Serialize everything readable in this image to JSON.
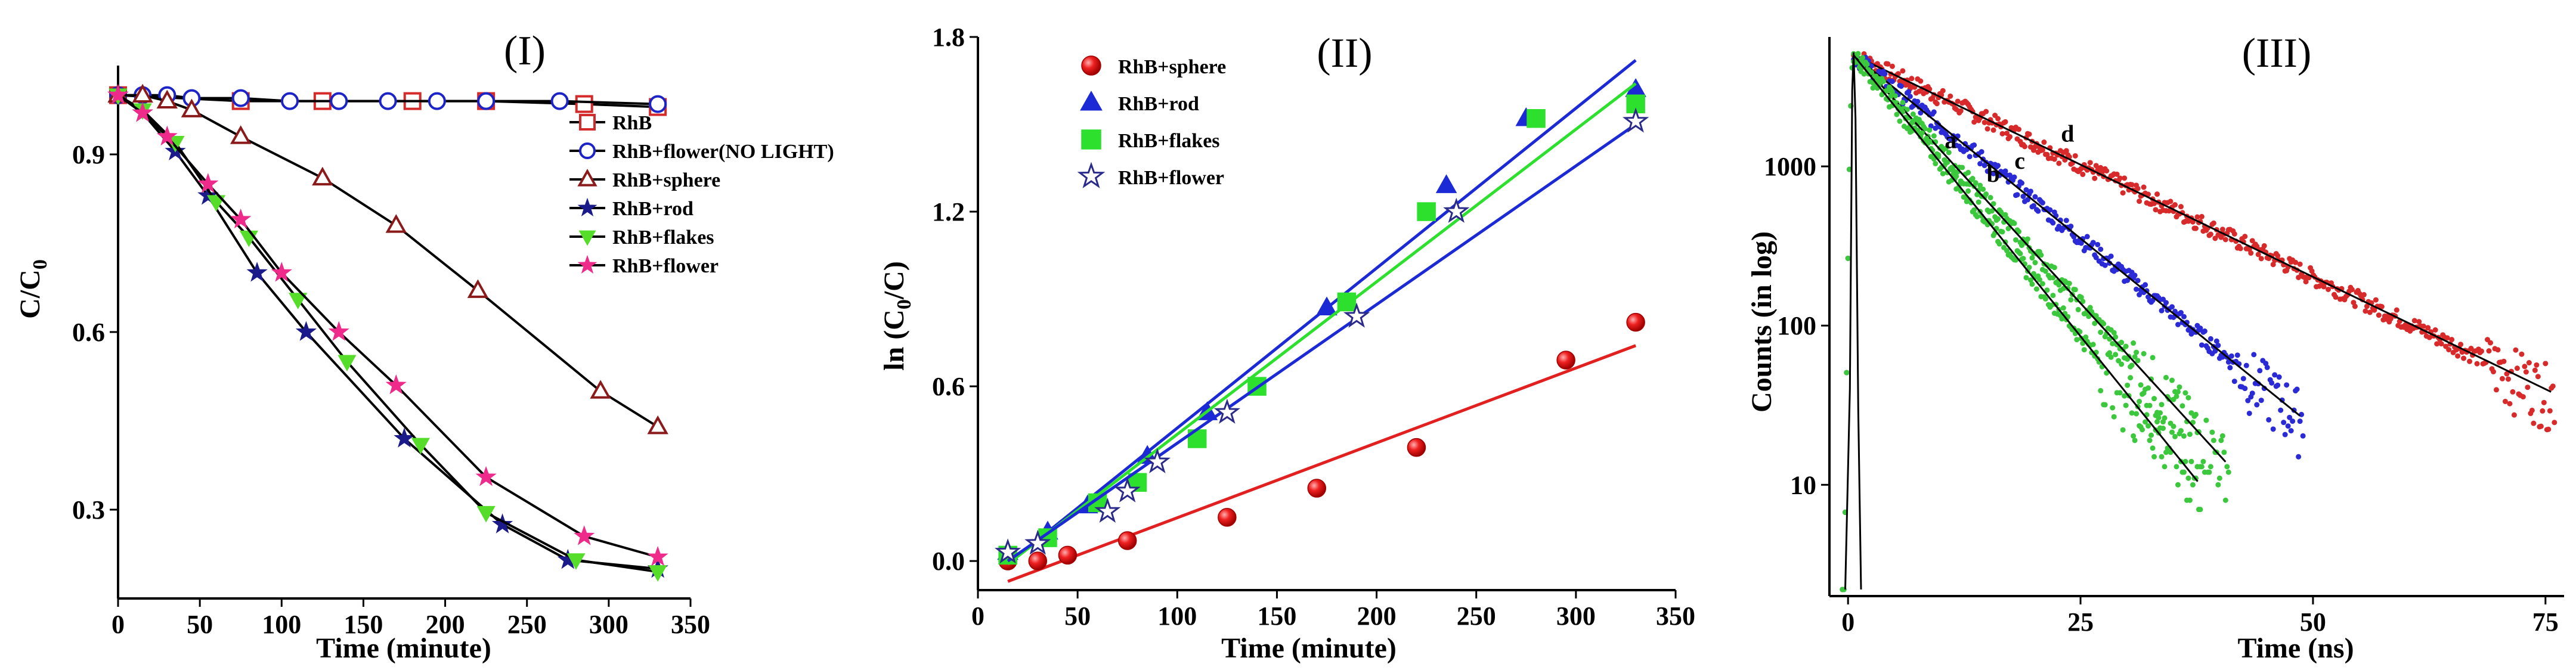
{
  "chart_data": [
    {
      "type": "line",
      "panel_label": "(I)",
      "xlabel": "Time (minute)",
      "ylabel": "C/C",
      "ylabel_sub": "0",
      "xlim": [
        0,
        350
      ],
      "ylim": [
        0.15,
        1.05
      ],
      "xticks": [
        0,
        50,
        100,
        150,
        200,
        250,
        300,
        350
      ],
      "yticks": [
        0.3,
        0.6,
        0.9
      ],
      "grid": false,
      "legend": "top-right",
      "series": [
        {
          "name": "RhB",
          "color": "#d42a2a",
          "marker": "square",
          "x": [
            0,
            75,
            125,
            180,
            225,
            285,
            330
          ],
          "y": [
            1.0,
            0.99,
            0.99,
            0.99,
            0.99,
            0.985,
            0.98
          ]
        },
        {
          "name": "RhB+flower(NO LIGHT)",
          "color": "#1c24c8",
          "marker": "circle",
          "x": [
            0,
            15,
            30,
            45,
            75,
            105,
            135,
            165,
            195,
            225,
            270,
            330
          ],
          "y": [
            1.0,
            1.0,
            1.0,
            0.995,
            0.995,
            0.99,
            0.99,
            0.99,
            0.99,
            0.99,
            0.99,
            0.985
          ]
        },
        {
          "name": "RhB+sphere",
          "color": "#8b1a1a",
          "marker": "triangle",
          "x": [
            0,
            15,
            30,
            45,
            75,
            125,
            170,
            220,
            295,
            330
          ],
          "y": [
            1.0,
            1.0,
            0.99,
            0.975,
            0.93,
            0.86,
            0.78,
            0.67,
            0.5,
            0.44
          ]
        },
        {
          "name": "RhB+rod",
          "color": "#1a1a8a",
          "marker": "star",
          "x": [
            0,
            15,
            35,
            55,
            85,
            115,
            175,
            235,
            275,
            330
          ],
          "y": [
            1.0,
            0.97,
            0.905,
            0.83,
            0.7,
            0.6,
            0.42,
            0.275,
            0.215,
            0.2
          ]
        },
        {
          "name": "RhB+flakes",
          "color": "#55dd2a",
          "marker": "triangle-down",
          "x": [
            0,
            15,
            35,
            60,
            80,
            110,
            140,
            185,
            225,
            280,
            330
          ],
          "y": [
            1.0,
            0.975,
            0.92,
            0.82,
            0.76,
            0.655,
            0.55,
            0.41,
            0.295,
            0.215,
            0.195
          ]
        },
        {
          "name": "RhB+flower",
          "color": "#ee2a8a",
          "marker": "star",
          "x": [
            0,
            15,
            30,
            55,
            75,
            100,
            135,
            170,
            225,
            285,
            330
          ],
          "y": [
            1.0,
            0.97,
            0.93,
            0.85,
            0.79,
            0.7,
            0.6,
            0.51,
            0.355,
            0.255,
            0.22
          ]
        }
      ]
    },
    {
      "type": "scatter",
      "panel_label": "(II)",
      "xlabel": "Time (minute)",
      "ylabel": "ln (C",
      "ylabel_sub": "0",
      "ylabel_end": "/C)",
      "xlim": [
        0,
        350
      ],
      "ylim": [
        -0.1,
        1.8
      ],
      "xticks": [
        0,
        50,
        100,
        150,
        200,
        250,
        300,
        350
      ],
      "yticks": [
        0.0,
        0.6,
        1.2,
        1.8
      ],
      "grid": false,
      "legend": "top-left",
      "series": [
        {
          "name": "RhB+sphere",
          "color": "#e22020",
          "marker": "sphere",
          "x": [
            15,
            30,
            45,
            75,
            125,
            170,
            220,
            295,
            330
          ],
          "y": [
            0.0,
            0.0,
            0.02,
            0.07,
            0.15,
            0.25,
            0.39,
            0.69,
            0.82
          ],
          "fit": [
            [
              15,
              -0.07
            ],
            [
              330,
              0.74
            ]
          ]
        },
        {
          "name": "RhB+rod",
          "color": "#1c2ad6",
          "marker": "triangle",
          "x": [
            15,
            35,
            55,
            85,
            115,
            175,
            235,
            275,
            330
          ],
          "y": [
            0.03,
            0.1,
            0.19,
            0.36,
            0.51,
            0.87,
            1.29,
            1.52,
            1.62
          ],
          "fit": [
            [
              15,
              -0.01
            ],
            [
              330,
              1.72
            ]
          ]
        },
        {
          "name": "RhB+flakes",
          "color": "#2ee02e",
          "marker": "square",
          "x": [
            15,
            35,
            60,
            80,
            110,
            140,
            185,
            225,
            280,
            330
          ],
          "y": [
            0.02,
            0.08,
            0.2,
            0.27,
            0.42,
            0.6,
            0.89,
            1.2,
            1.52,
            1.57
          ],
          "fit": [
            [
              15,
              -0.01
            ],
            [
              330,
              1.64
            ]
          ]
        },
        {
          "name": "RhB+flower",
          "color": "#2a2a8a",
          "marker": "star",
          "x": [
            15,
            30,
            65,
            75,
            90,
            125,
            190,
            240,
            330
          ],
          "y": [
            0.03,
            0.06,
            0.17,
            0.24,
            0.34,
            0.51,
            0.84,
            1.2,
            1.51
          ],
          "fit": [
            [
              15,
              0.0
            ],
            [
              330,
              1.5
            ]
          ]
        }
      ]
    },
    {
      "type": "scatter",
      "panel_label": "(III)",
      "xlabel": "Time (ns)",
      "ylabel": "Counts (in log)",
      "xlim": [
        -2,
        77
      ],
      "log_y": true,
      "ylim": [
        2,
        6500
      ],
      "xticks": [
        0,
        25,
        50,
        75
      ],
      "yticks": [
        10,
        100,
        1000
      ],
      "grid": false,
      "legend": "none",
      "series": [
        {
          "name": "a",
          "color": "#3cc83c",
          "peak": 5000,
          "tau_ns": 6.0,
          "end_ns": 38
        },
        {
          "name": "b",
          "color": "#3cc83c",
          "peak": 5000,
          "tau_ns": 6.8,
          "end_ns": 41
        },
        {
          "name": "c",
          "color": "#2a2ad6",
          "peak": 5000,
          "tau_ns": 9.2,
          "end_ns": 49
        },
        {
          "name": "d",
          "color": "#d82a2a",
          "peak": 5000,
          "tau_ns": 15.4,
          "end_ns": 76
        }
      ],
      "irf": {
        "color": "#000000",
        "peak_ns": 0.6
      }
    }
  ]
}
